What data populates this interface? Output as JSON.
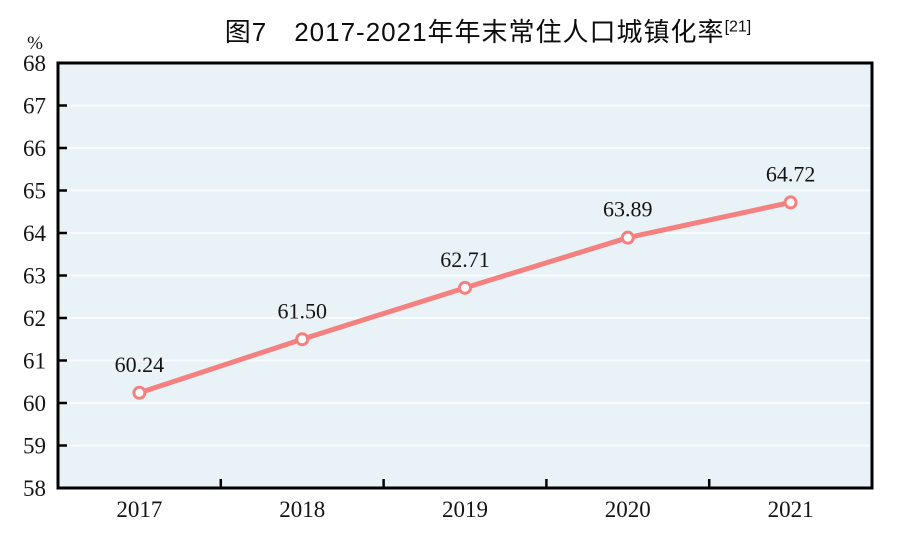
{
  "title": {
    "text": "图7　2017-2021年年末常住人口城镇化率",
    "footnote_ref": "[21]"
  },
  "chart_data": {
    "type": "line",
    "title": "图7　2017-2021年年末常住人口城镇化率[21]",
    "unit_label": "%",
    "categories": [
      "2017",
      "2018",
      "2019",
      "2020",
      "2021"
    ],
    "values": [
      60.24,
      61.5,
      62.71,
      63.89,
      64.72
    ],
    "value_labels": [
      "60.24",
      "61.50",
      "62.71",
      "63.89",
      "64.72"
    ],
    "xlabel": "",
    "ylabel": "%",
    "ylim": [
      58,
      68
    ],
    "ytick_step": 1,
    "ytick_labels": [
      "58",
      "59",
      "60",
      "61",
      "62",
      "63",
      "64",
      "65",
      "66",
      "67",
      "68"
    ],
    "grid": "horizontal",
    "legend": "none",
    "colors": {
      "line": "#f4807f",
      "marker_fill": "#ffffff",
      "plot_bg": "#e9f2f7",
      "grid": "#f8fcfe",
      "axis": "#000000",
      "text": "#141414"
    }
  }
}
